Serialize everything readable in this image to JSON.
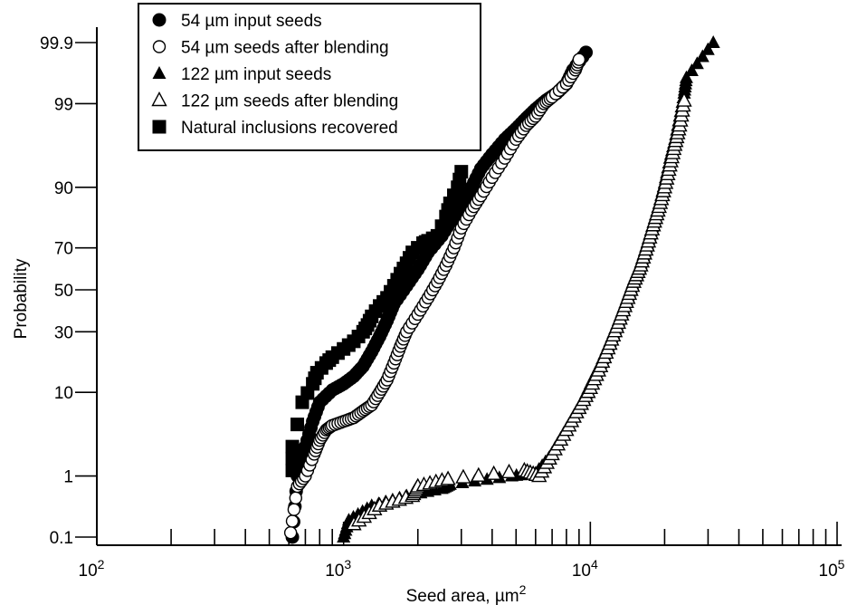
{
  "chart_data": {
    "type": "scatter",
    "xlabel": "Seed area, µm2",
    "ylabel": "Probability",
    "xscale": "log",
    "yscale": "normal-probability",
    "xlim": [
      100,
      100000
    ],
    "ylim": [
      0.1,
      99.9
    ],
    "x_ticks": [
      "10^2",
      "10^3",
      "10^4",
      "10^5"
    ],
    "y_ticks": [
      "0.1",
      "1",
      "10",
      "30",
      "50",
      "70",
      "90",
      "99",
      "99.9"
    ],
    "grid": false,
    "legend_position": "top-left",
    "legend": [
      "54 µm input seeds",
      "54 µm seeds after blending",
      "122 µm input seeds",
      "122 µm seeds after blending",
      "Natural inclusions recovered"
    ],
    "series": [
      {
        "name": "54 µm input seeds",
        "marker": "filled-circle",
        "points": [
          [
            620,
            0.1
          ],
          [
            650,
            1.0
          ],
          [
            700,
            2.5
          ],
          [
            750,
            5
          ],
          [
            800,
            8
          ],
          [
            900,
            10.5
          ],
          [
            1000,
            12
          ],
          [
            1100,
            14
          ],
          [
            1200,
            17
          ],
          [
            1300,
            22
          ],
          [
            1400,
            28
          ],
          [
            1500,
            35
          ],
          [
            1600,
            43
          ],
          [
            1800,
            52
          ],
          [
            2000,
            60
          ],
          [
            2200,
            68
          ],
          [
            2500,
            75
          ],
          [
            2800,
            82
          ],
          [
            3000,
            86
          ],
          [
            3300,
            90
          ],
          [
            3600,
            93.5
          ],
          [
            4000,
            95.5
          ],
          [
            4500,
            97
          ],
          [
            5000,
            97.8
          ],
          [
            5500,
            98.4
          ],
          [
            6000,
            98.8
          ],
          [
            6600,
            99.1
          ],
          [
            7300,
            99.3
          ],
          [
            8000,
            99.5
          ],
          [
            8500,
            99.7
          ],
          [
            9600,
            99.85
          ]
        ]
      },
      {
        "name": "54 µm seeds after blending",
        "marker": "open-circle",
        "points": [
          [
            610,
            0.12
          ],
          [
            650,
            0.7
          ],
          [
            700,
            1.0
          ],
          [
            760,
            2.0
          ],
          [
            800,
            3.0
          ],
          [
            850,
            4.0
          ],
          [
            900,
            4.5
          ],
          [
            1000,
            5.0
          ],
          [
            1100,
            5.5
          ],
          [
            1200,
            6.5
          ],
          [
            1300,
            7.5
          ],
          [
            1400,
            10
          ],
          [
            1500,
            13
          ],
          [
            1600,
            18
          ],
          [
            1700,
            24
          ],
          [
            1800,
            30
          ],
          [
            2000,
            38
          ],
          [
            2200,
            46
          ],
          [
            2400,
            54
          ],
          [
            2600,
            62
          ],
          [
            2800,
            70
          ],
          [
            3000,
            78
          ],
          [
            3300,
            84
          ],
          [
            3600,
            88
          ],
          [
            4000,
            92
          ],
          [
            4500,
            95
          ],
          [
            5000,
            97
          ],
          [
            5500,
            98
          ],
          [
            6000,
            98.5
          ],
          [
            6500,
            99
          ],
          [
            7000,
            99.2
          ],
          [
            8000,
            99.5
          ],
          [
            8700,
            99.7
          ],
          [
            9000,
            99.8
          ]
        ]
      },
      {
        "name": "122 µm input seeds",
        "marker": "filled-triangle",
        "points": [
          [
            1000,
            0.1
          ],
          [
            1050,
            0.2
          ],
          [
            1300,
            0.35
          ],
          [
            1800,
            0.5
          ],
          [
            2500,
            0.65
          ],
          [
            2700,
            0.75
          ],
          [
            4800,
            1.0
          ],
          [
            6000,
            1.1
          ],
          [
            7000,
            2
          ],
          [
            8000,
            4
          ],
          [
            9000,
            7
          ],
          [
            10000,
            12
          ],
          [
            11000,
            18
          ],
          [
            12000,
            26
          ],
          [
            13000,
            35
          ],
          [
            14000,
            45
          ],
          [
            15000,
            55
          ],
          [
            16000,
            63
          ],
          [
            17000,
            72
          ],
          [
            18000,
            80
          ],
          [
            19000,
            86
          ],
          [
            20000,
            91
          ],
          [
            21000,
            95
          ],
          [
            22000,
            97
          ],
          [
            23000,
            98.5
          ],
          [
            24000,
            99.3
          ],
          [
            24500,
            99.6
          ],
          [
            31500,
            99.9
          ]
        ]
      },
      {
        "name": "122 µm seeds after blending",
        "marker": "open-triangle",
        "points": [
          [
            1100,
            0.17
          ],
          [
            1400,
            0.35
          ],
          [
            1900,
            0.5
          ],
          [
            2000,
            0.7
          ],
          [
            2650,
            0.9
          ],
          [
            5400,
            1.2
          ],
          [
            6200,
            1.0
          ],
          [
            7000,
            2
          ],
          [
            8000,
            4
          ],
          [
            9000,
            7
          ],
          [
            10000,
            11
          ],
          [
            11000,
            17
          ],
          [
            12000,
            25
          ],
          [
            13000,
            34
          ],
          [
            14000,
            44
          ],
          [
            15000,
            54
          ],
          [
            16000,
            62
          ],
          [
            17000,
            71
          ],
          [
            18000,
            79
          ],
          [
            19000,
            85
          ],
          [
            20000,
            90
          ],
          [
            21000,
            94
          ],
          [
            22000,
            96.5
          ],
          [
            23000,
            98
          ],
          [
            24000,
            99.1
          ]
        ]
      },
      {
        "name": "Natural inclusions recovered",
        "marker": "filled-square",
        "points": [
          [
            620,
            1.2
          ],
          [
            620,
            2.5
          ],
          [
            680,
            8
          ],
          [
            750,
            12
          ],
          [
            780,
            15
          ],
          [
            850,
            18
          ],
          [
            900,
            20
          ],
          [
            1000,
            23
          ],
          [
            1100,
            26
          ],
          [
            1200,
            30
          ],
          [
            1250,
            33
          ],
          [
            1300,
            37
          ],
          [
            1400,
            42
          ],
          [
            1500,
            46
          ],
          [
            1600,
            52
          ],
          [
            1700,
            58
          ],
          [
            1800,
            63
          ],
          [
            1900,
            68
          ],
          [
            2100,
            72
          ],
          [
            2200,
            73
          ],
          [
            2400,
            75
          ],
          [
            2600,
            82
          ],
          [
            2700,
            86
          ],
          [
            2900,
            90
          ],
          [
            3000,
            93
          ]
        ]
      }
    ]
  }
}
